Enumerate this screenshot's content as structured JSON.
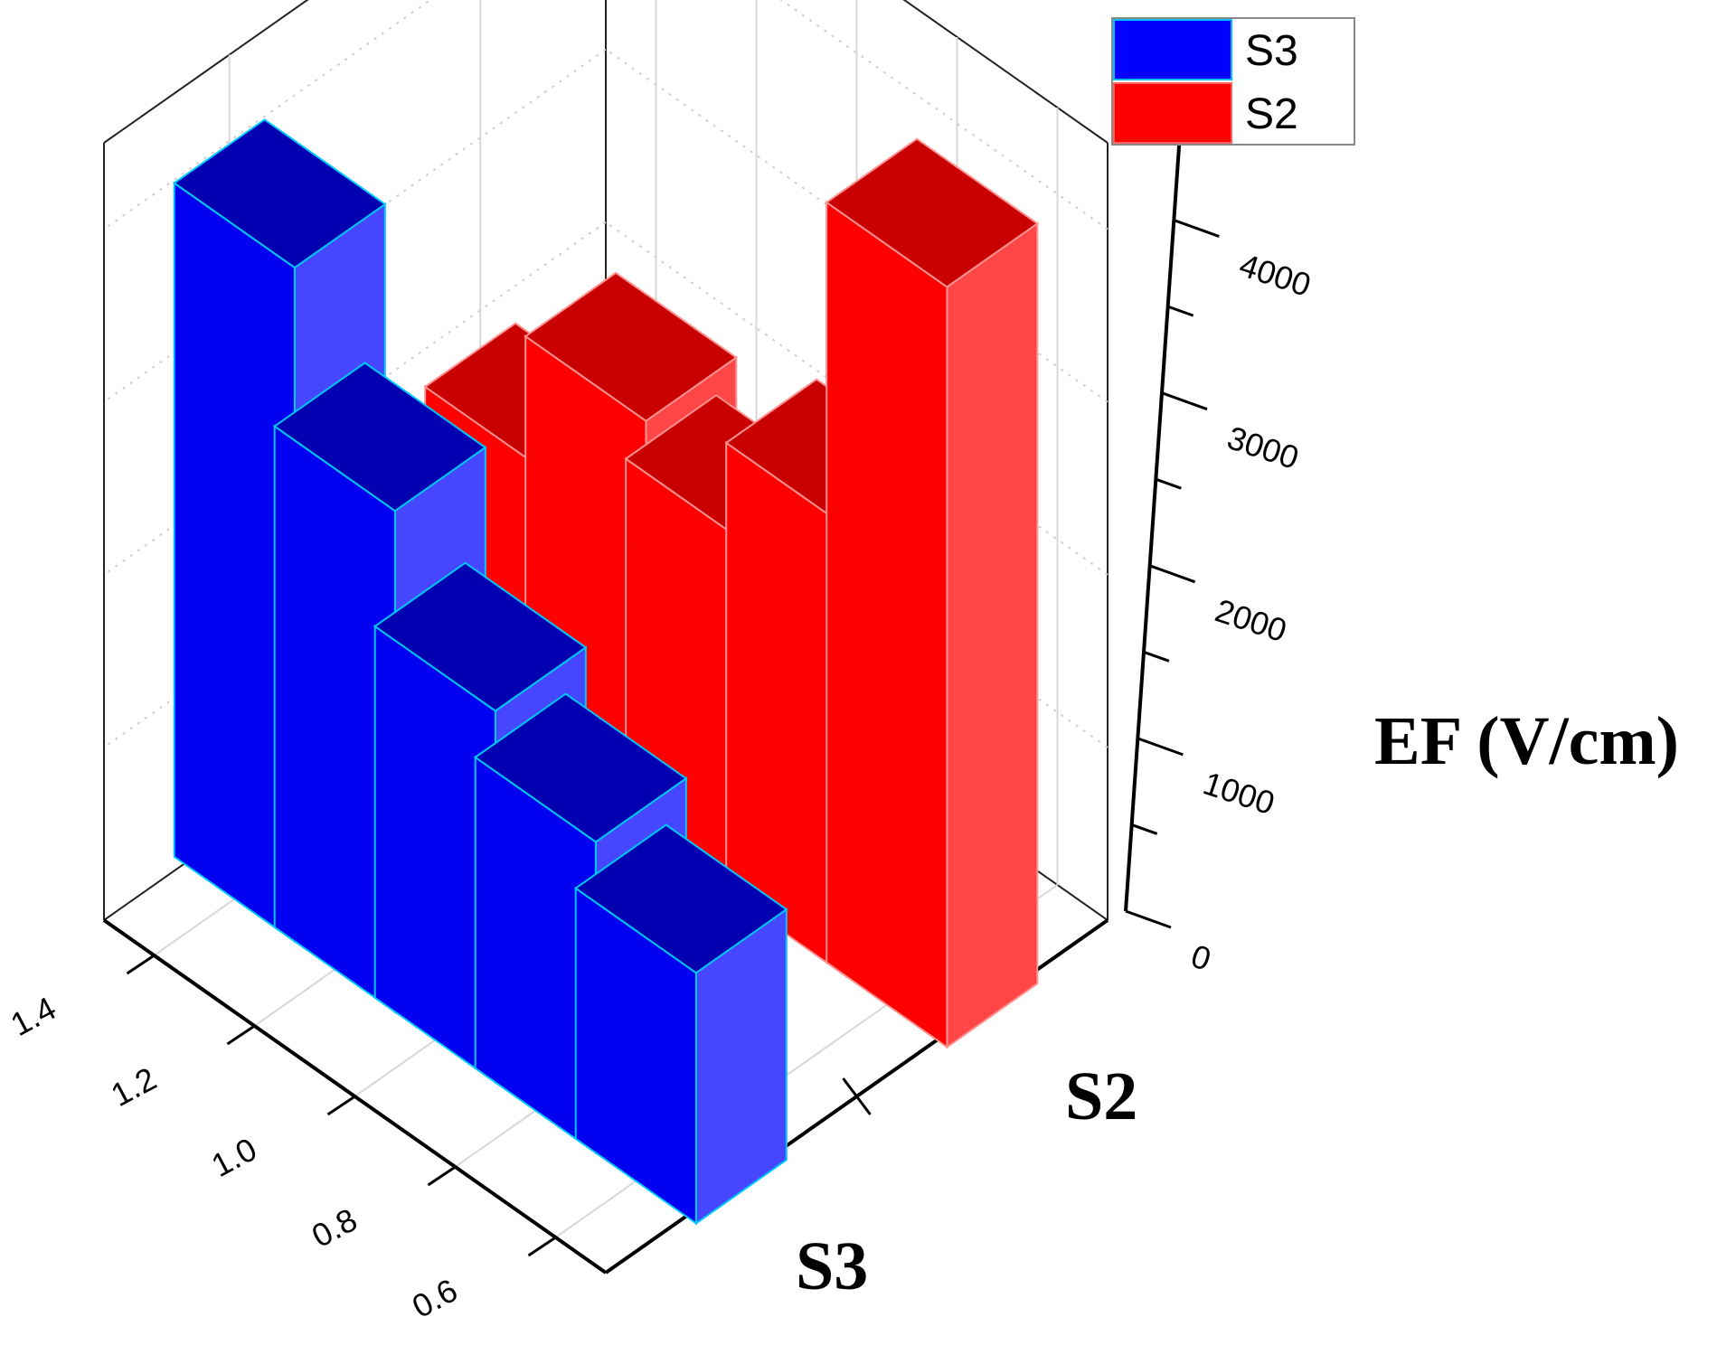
{
  "chart_data": {
    "type": "bar",
    "subtype": "3d-bar",
    "title": "",
    "categories": [
      "0.6",
      "0.8",
      "1.0",
      "1.2",
      "1.4"
    ],
    "x_tick_labels": [
      "1.4",
      "1.2",
      "1.0",
      "0.8",
      "0.6"
    ],
    "series_axis_labels": [
      "S3",
      "S2"
    ],
    "zlabel": "EF (V/cm)",
    "z_tick_labels": [
      "0",
      "1000",
      "2000",
      "3000",
      "4000"
    ],
    "zlim": [
      0,
      4500
    ],
    "grid": true,
    "legend": {
      "placement": "top-right",
      "entries": [
        "S3",
        "S2"
      ]
    },
    "series": [
      {
        "name": "S3",
        "color": "#0000ff",
        "values": [
          1450,
          1800,
          2150,
          2900,
          3900
        ]
      },
      {
        "name": "S2",
        "color": "#ff0000",
        "values": [
          4400,
          2600,
          2100,
          2400,
          1700
        ]
      }
    ]
  }
}
